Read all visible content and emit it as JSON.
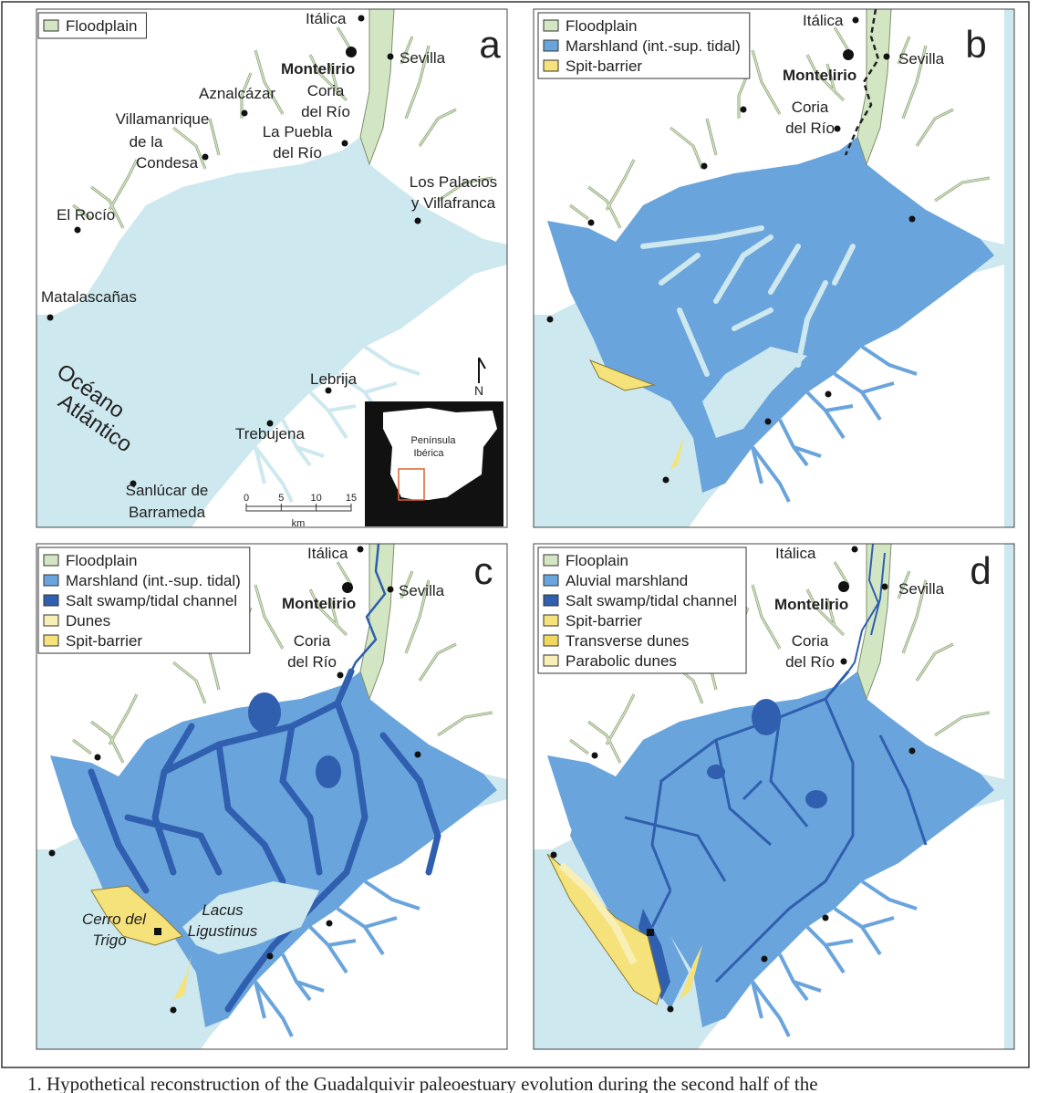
{
  "panels": [
    {
      "letter": "a",
      "legend": [
        {
          "label": "Floodplain",
          "color": "#d3e6c3"
        }
      ],
      "labels": [
        "Itálica",
        "Montelirio",
        "Sevilla",
        "Aznalcázar",
        "Coria",
        "del Río",
        "La Puebla",
        "del Río",
        "Villamanrique",
        "de la",
        "Condesa",
        "Los Palacios",
        "y Villafranca",
        "El Rocío",
        "Matalascañas",
        "Lebrija",
        "Trebujena",
        "Sanlúcar de",
        "Barrameda",
        "Océano",
        "Atlántico"
      ],
      "scale": {
        "ticks": [
          0,
          5,
          10,
          15
        ],
        "unit": "km"
      },
      "north": "N",
      "inset": [
        "Península",
        "Ibérica"
      ]
    },
    {
      "letter": "b",
      "legend": [
        {
          "label": "Floodplain",
          "color": "#d3e6c3"
        },
        {
          "label": "Marshland (int.-sup. tidal)",
          "color": "#6aa4dc"
        },
        {
          "label": "Spit-barrier",
          "color": "#f5e27a"
        }
      ],
      "labels": [
        "Itálica",
        "Montelirio",
        "Sevilla",
        "Coria",
        "del Río"
      ]
    },
    {
      "letter": "c",
      "legend": [
        {
          "label": "Floodplain",
          "color": "#d3e6c3"
        },
        {
          "label": "Marshland (int.-sup. tidal)",
          "color": "#6aa4dc"
        },
        {
          "label": "Salt swamp/tidal channel",
          "color": "#2f5fae"
        },
        {
          "label": "Dunes",
          "color": "#f7efb6"
        },
        {
          "label": "Spit-barrier",
          "color": "#f5e27a"
        }
      ],
      "labels": [
        "Itálica",
        "Montelirio",
        "Sevilla",
        "Coria",
        "del Río",
        "Cerro del",
        "Trigo",
        "Lacus",
        "Ligustinus"
      ]
    },
    {
      "letter": "d",
      "legend": [
        {
          "label": "Flooplain",
          "color": "#d3e6c3"
        },
        {
          "label": "Aluvial marshland",
          "color": "#6aa4dc"
        },
        {
          "label": "Salt swamp/tidal channel",
          "color": "#2f5fae"
        },
        {
          "label": "Spit-barrier",
          "color": "#f5e27a"
        },
        {
          "label": "Transverse dunes",
          "color": "#f0d860"
        },
        {
          "label": "Parabolic dunes",
          "color": "#f7efb6"
        }
      ],
      "labels": [
        "Itálica",
        "Montelirio",
        "Sevilla",
        "Coria",
        "del Río"
      ]
    }
  ],
  "caption": "1. Hypothetical reconstruction of the Guadalquivir paleoestuary evolution during the second half of the"
}
